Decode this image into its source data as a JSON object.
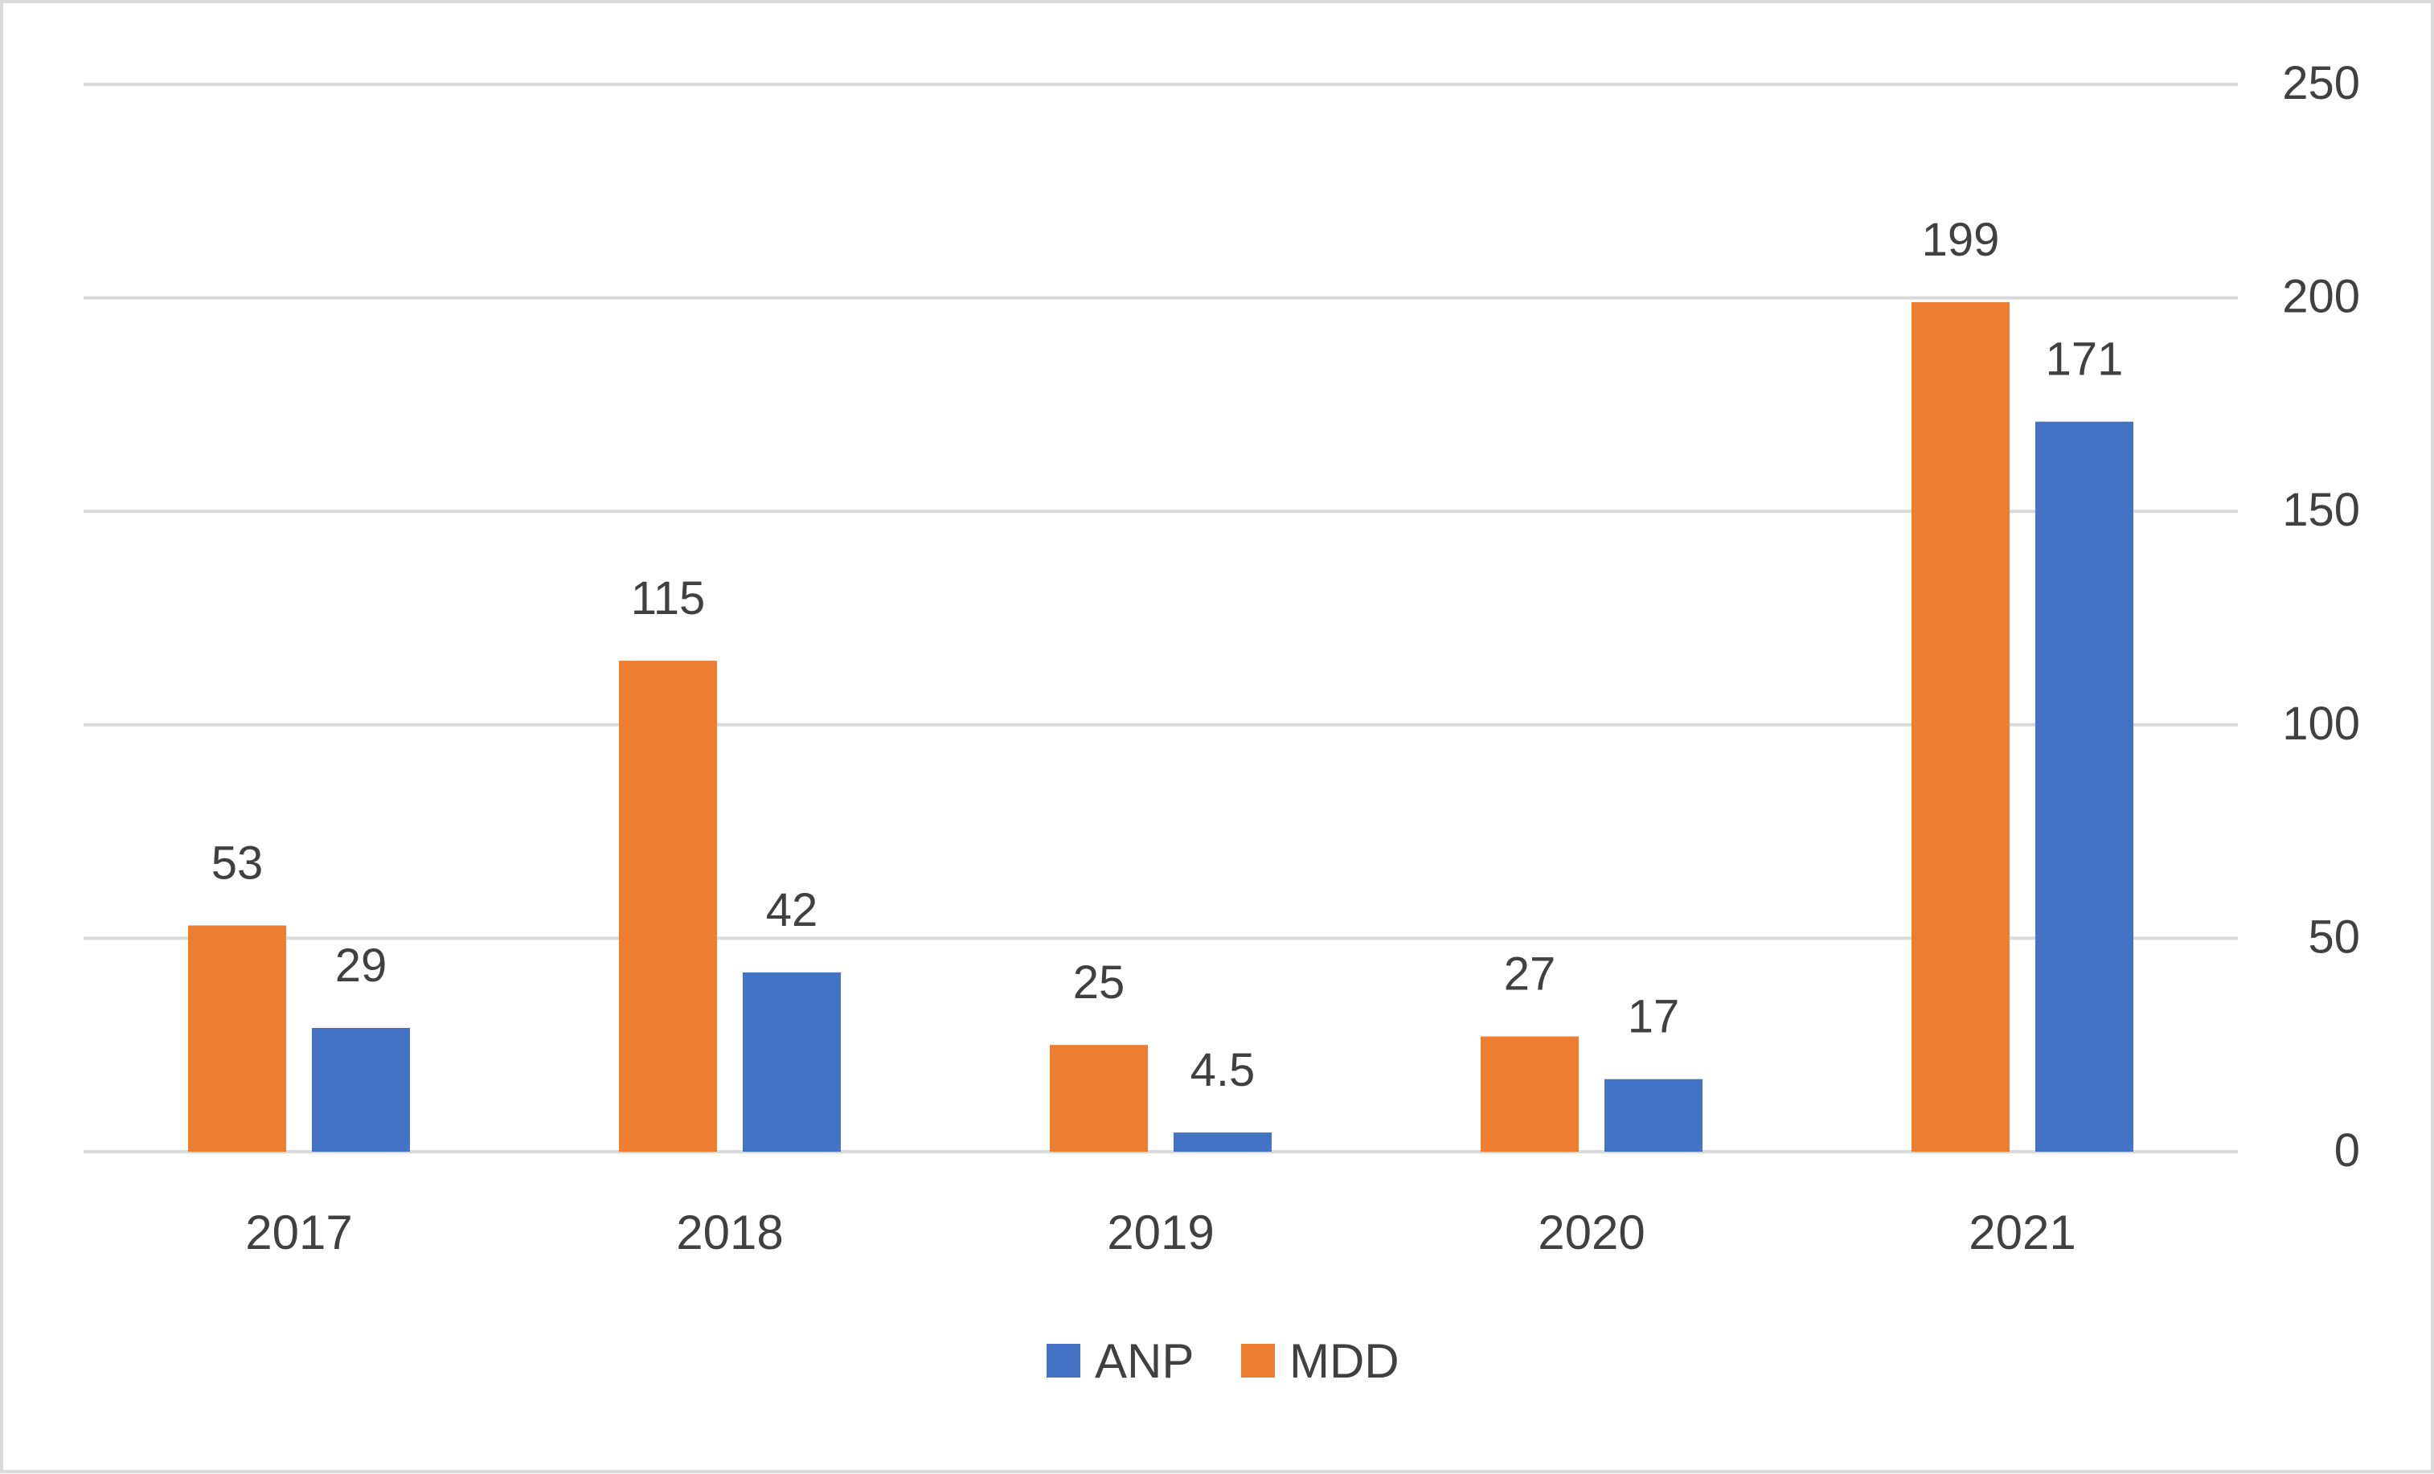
{
  "chart_data": {
    "type": "bar",
    "title": "",
    "xlabel": "",
    "ylabel": "",
    "categories": [
      "2017",
      "2018",
      "2019",
      "2020",
      "2021"
    ],
    "series": [
      {
        "name": "MDD",
        "color": "#ED7D31",
        "values": [
          53,
          115,
          25,
          27,
          199
        ],
        "labels": [
          "53",
          "115",
          "25",
          "27",
          "199"
        ]
      },
      {
        "name": "ANP",
        "color": "#4472C4",
        "values": [
          29,
          42,
          4.5,
          17,
          171
        ],
        "labels": [
          "29",
          "42",
          "4.5",
          "17",
          "171"
        ]
      }
    ],
    "ylim": [
      0,
      250
    ],
    "yticks": [
      "0",
      "50",
      "100",
      "150",
      "200",
      "250"
    ],
    "y_axis_side": "right",
    "grid": true,
    "gridline_color": "#D9D9D9",
    "legend": {
      "position": "bottom",
      "entries": [
        {
          "name": "ANP",
          "color": "#4472C4"
        },
        {
          "name": "MDD",
          "color": "#ED7D31"
        }
      ]
    }
  }
}
